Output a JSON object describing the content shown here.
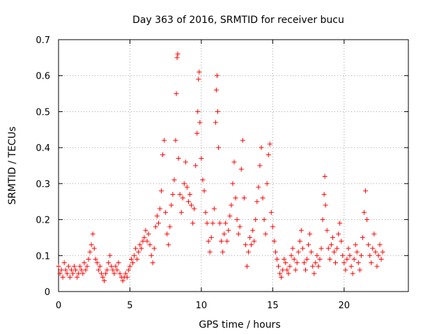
{
  "chart_data": {
    "type": "scatter",
    "title": "Day 363 of 2016, SRMTID for receiver bucu",
    "xlabel": "GPS time / hours",
    "ylabel": "SRMTID / TECUs",
    "xlim": [
      0,
      24.5
    ],
    "ylim": [
      0,
      0.7
    ],
    "xticks": [
      0,
      5,
      10,
      15,
      20
    ],
    "yticks": [
      0,
      0.1,
      0.2,
      0.3,
      0.4,
      0.5,
      0.6,
      0.7
    ],
    "grid": true,
    "marker": "+",
    "color": "#ff0000",
    "series": [
      {
        "name": "SRMTID",
        "points": [
          [
            0.0,
            0.07
          ],
          [
            0.1,
            0.05
          ],
          [
            0.2,
            0.06
          ],
          [
            0.3,
            0.04
          ],
          [
            0.4,
            0.08
          ],
          [
            0.5,
            0.06
          ],
          [
            0.6,
            0.05
          ],
          [
            0.7,
            0.07
          ],
          [
            0.8,
            0.04
          ],
          [
            0.9,
            0.06
          ],
          [
            1.0,
            0.05
          ],
          [
            1.1,
            0.07
          ],
          [
            1.2,
            0.06
          ],
          [
            1.3,
            0.04
          ],
          [
            1.4,
            0.05
          ],
          [
            1.5,
            0.07
          ],
          [
            1.6,
            0.06
          ],
          [
            1.7,
            0.05
          ],
          [
            1.8,
            0.08
          ],
          [
            1.9,
            0.06
          ],
          [
            2.0,
            0.07
          ],
          [
            2.1,
            0.09
          ],
          [
            2.2,
            0.11
          ],
          [
            2.3,
            0.13
          ],
          [
            2.4,
            0.16
          ],
          [
            2.5,
            0.12
          ],
          [
            2.6,
            0.09
          ],
          [
            2.7,
            0.08
          ],
          [
            2.8,
            0.06
          ],
          [
            2.9,
            0.07
          ],
          [
            3.0,
            0.05
          ],
          [
            3.1,
            0.04
          ],
          [
            3.2,
            0.03
          ],
          [
            3.3,
            0.05
          ],
          [
            3.4,
            0.06
          ],
          [
            3.5,
            0.08
          ],
          [
            3.6,
            0.1
          ],
          [
            3.7,
            0.07
          ],
          [
            3.8,
            0.06
          ],
          [
            3.9,
            0.05
          ],
          [
            4.0,
            0.07
          ],
          [
            4.1,
            0.06
          ],
          [
            4.2,
            0.08
          ],
          [
            4.3,
            0.05
          ],
          [
            4.4,
            0.04
          ],
          [
            4.5,
            0.03
          ],
          [
            4.6,
            0.04
          ],
          [
            4.7,
            0.05
          ],
          [
            4.8,
            0.04
          ],
          [
            4.9,
            0.06
          ],
          [
            5.0,
            0.07
          ],
          [
            5.1,
            0.09
          ],
          [
            5.2,
            0.08
          ],
          [
            5.3,
            0.1
          ],
          [
            5.4,
            0.12
          ],
          [
            5.5,
            0.09
          ],
          [
            5.6,
            0.11
          ],
          [
            5.7,
            0.13
          ],
          [
            5.8,
            0.12
          ],
          [
            5.9,
            0.14
          ],
          [
            6.0,
            0.15
          ],
          [
            6.1,
            0.17
          ],
          [
            6.2,
            0.14
          ],
          [
            6.3,
            0.16
          ],
          [
            6.4,
            0.13
          ],
          [
            6.5,
            0.1
          ],
          [
            6.6,
            0.08
          ],
          [
            6.7,
            0.12
          ],
          [
            6.8,
            0.18
          ],
          [
            6.9,
            0.21
          ],
          [
            7.0,
            0.19
          ],
          [
            7.1,
            0.23
          ],
          [
            7.2,
            0.28
          ],
          [
            7.3,
            0.38
          ],
          [
            7.4,
            0.42
          ],
          [
            7.5,
            0.22
          ],
          [
            7.6,
            0.16
          ],
          [
            7.7,
            0.13
          ],
          [
            7.8,
            0.18
          ],
          [
            7.9,
            0.24
          ],
          [
            8.0,
            0.27
          ],
          [
            8.1,
            0.31
          ],
          [
            8.2,
            0.42
          ],
          [
            8.25,
            0.55
          ],
          [
            8.3,
            0.65
          ],
          [
            8.35,
            0.66
          ],
          [
            8.4,
            0.37
          ],
          [
            8.5,
            0.27
          ],
          [
            8.6,
            0.22
          ],
          [
            8.7,
            0.26
          ],
          [
            8.8,
            0.3
          ],
          [
            8.9,
            0.36
          ],
          [
            9.0,
            0.29
          ],
          [
            9.1,
            0.25
          ],
          [
            9.2,
            0.27
          ],
          [
            9.3,
            0.24
          ],
          [
            9.4,
            0.19
          ],
          [
            9.5,
            0.23
          ],
          [
            9.6,
            0.35
          ],
          [
            9.7,
            0.44
          ],
          [
            9.75,
            0.5
          ],
          [
            9.8,
            0.59
          ],
          [
            9.85,
            0.61
          ],
          [
            9.9,
            0.47
          ],
          [
            10.0,
            0.37
          ],
          [
            10.1,
            0.31
          ],
          [
            10.2,
            0.28
          ],
          [
            10.3,
            0.22
          ],
          [
            10.4,
            0.19
          ],
          [
            10.5,
            0.14
          ],
          [
            10.6,
            0.11
          ],
          [
            10.7,
            0.15
          ],
          [
            10.8,
            0.19
          ],
          [
            10.9,
            0.23
          ],
          [
            11.0,
            0.47
          ],
          [
            11.05,
            0.56
          ],
          [
            11.1,
            0.6
          ],
          [
            11.15,
            0.5
          ],
          [
            11.2,
            0.4
          ],
          [
            11.3,
            0.19
          ],
          [
            11.4,
            0.14
          ],
          [
            11.5,
            0.11
          ],
          [
            11.6,
            0.16
          ],
          [
            11.7,
            0.19
          ],
          [
            11.8,
            0.14
          ],
          [
            11.9,
            0.17
          ],
          [
            12.0,
            0.21
          ],
          [
            12.1,
            0.24
          ],
          [
            12.2,
            0.3
          ],
          [
            12.3,
            0.36
          ],
          [
            12.4,
            0.26
          ],
          [
            12.5,
            0.2
          ],
          [
            12.6,
            0.16
          ],
          [
            12.7,
            0.18
          ],
          [
            12.8,
            0.34
          ],
          [
            12.9,
            0.42
          ],
          [
            13.0,
            0.26
          ],
          [
            13.1,
            0.13
          ],
          [
            13.2,
            0.07
          ],
          [
            13.3,
            0.11
          ],
          [
            13.4,
            0.15
          ],
          [
            13.5,
            0.13
          ],
          [
            13.6,
            0.17
          ],
          [
            13.7,
            0.14
          ],
          [
            13.8,
            0.2
          ],
          [
            13.9,
            0.25
          ],
          [
            14.0,
            0.29
          ],
          [
            14.1,
            0.35
          ],
          [
            14.2,
            0.4
          ],
          [
            14.3,
            0.26
          ],
          [
            14.4,
            0.2
          ],
          [
            14.5,
            0.16
          ],
          [
            14.6,
            0.3
          ],
          [
            14.7,
            0.38
          ],
          [
            14.8,
            0.41
          ],
          [
            14.9,
            0.22
          ],
          [
            15.0,
            0.18
          ],
          [
            15.1,
            0.14
          ],
          [
            15.2,
            0.11
          ],
          [
            15.3,
            0.09
          ],
          [
            15.4,
            0.07
          ],
          [
            15.5,
            0.05
          ],
          [
            15.6,
            0.04
          ],
          [
            15.7,
            0.06
          ],
          [
            15.8,
            0.09
          ],
          [
            15.9,
            0.08
          ],
          [
            16.0,
            0.06
          ],
          [
            16.1,
            0.05
          ],
          [
            16.2,
            0.07
          ],
          [
            16.3,
            0.1
          ],
          [
            16.4,
            0.12
          ],
          [
            16.5,
            0.09
          ],
          [
            16.6,
            0.06
          ],
          [
            16.7,
            0.08
          ],
          [
            16.8,
            0.11
          ],
          [
            16.9,
            0.14
          ],
          [
            17.0,
            0.17
          ],
          [
            17.1,
            0.12
          ],
          [
            17.2,
            0.08
          ],
          [
            17.3,
            0.06
          ],
          [
            17.4,
            0.09
          ],
          [
            17.5,
            0.13
          ],
          [
            17.6,
            0.16
          ],
          [
            17.7,
            0.11
          ],
          [
            17.8,
            0.07
          ],
          [
            17.9,
            0.05
          ],
          [
            18.0,
            0.08
          ],
          [
            18.1,
            0.1
          ],
          [
            18.2,
            0.07
          ],
          [
            18.3,
            0.09
          ],
          [
            18.4,
            0.12
          ],
          [
            18.5,
            0.2
          ],
          [
            18.6,
            0.27
          ],
          [
            18.65,
            0.32
          ],
          [
            18.7,
            0.24
          ],
          [
            18.8,
            0.17
          ],
          [
            18.9,
            0.12
          ],
          [
            19.0,
            0.09
          ],
          [
            19.1,
            0.13
          ],
          [
            19.2,
            0.15
          ],
          [
            19.3,
            0.11
          ],
          [
            19.4,
            0.08
          ],
          [
            19.5,
            0.12
          ],
          [
            19.6,
            0.16
          ],
          [
            19.7,
            0.19
          ],
          [
            19.8,
            0.14
          ],
          [
            19.9,
            0.1
          ],
          [
            20.0,
            0.08
          ],
          [
            20.1,
            0.06
          ],
          [
            20.2,
            0.09
          ],
          [
            20.3,
            0.12
          ],
          [
            20.4,
            0.1
          ],
          [
            20.5,
            0.07
          ],
          [
            20.6,
            0.05
          ],
          [
            20.7,
            0.09
          ],
          [
            20.8,
            0.13
          ],
          [
            20.9,
            0.11
          ],
          [
            21.0,
            0.08
          ],
          [
            21.1,
            0.06
          ],
          [
            21.2,
            0.1
          ],
          [
            21.3,
            0.15
          ],
          [
            21.4,
            0.22
          ],
          [
            21.5,
            0.28
          ],
          [
            21.6,
            0.2
          ],
          [
            21.7,
            0.13
          ],
          [
            21.8,
            0.1
          ],
          [
            21.9,
            0.08
          ],
          [
            22.0,
            0.12
          ],
          [
            22.1,
            0.16
          ],
          [
            22.2,
            0.11
          ],
          [
            22.3,
            0.07
          ],
          [
            22.4,
            0.1
          ],
          [
            22.5,
            0.13
          ],
          [
            22.6,
            0.09
          ],
          [
            22.7,
            0.11
          ]
        ]
      }
    ]
  }
}
